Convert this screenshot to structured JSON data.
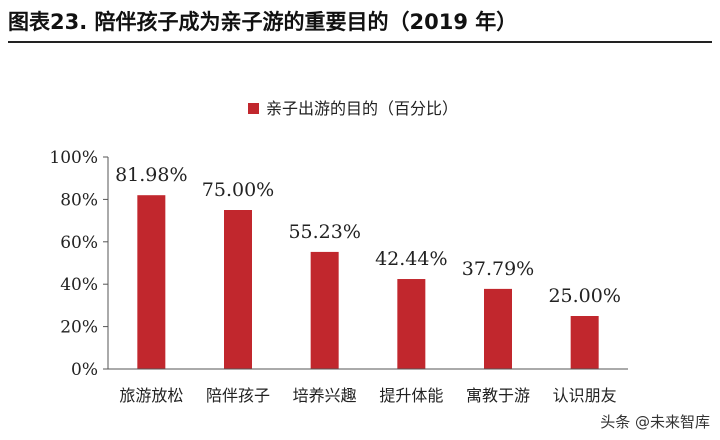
{
  "header": {
    "title": "图表23. 陪伴孩子成为亲子游的重要目的（2019 年）"
  },
  "watermark": "头条 @未来智库",
  "colors": {
    "bar": "#c1272d",
    "axis": "#555555"
  },
  "chart_data": {
    "type": "bar",
    "categories": [
      "旅游放松",
      "陪伴孩子",
      "培养兴趣",
      "提升体能",
      "寓教于游",
      "认识朋友"
    ],
    "series": [
      {
        "name": "亲子出游的目的（百分比）",
        "values": [
          81.98,
          75.0,
          55.23,
          42.44,
          37.79,
          25.0
        ],
        "value_labels": [
          "81.98%",
          "75.00%",
          "55.23%",
          "42.44%",
          "37.79%",
          "25.00%"
        ]
      }
    ],
    "ylim": [
      0,
      100
    ],
    "yticks": [
      0,
      20,
      40,
      60,
      80,
      100
    ],
    "ytick_labels": [
      "0%",
      "20%",
      "40%",
      "60%",
      "80%",
      "100%"
    ],
    "xlabel": "",
    "ylabel": "",
    "legend": "top-center",
    "grid": false
  }
}
